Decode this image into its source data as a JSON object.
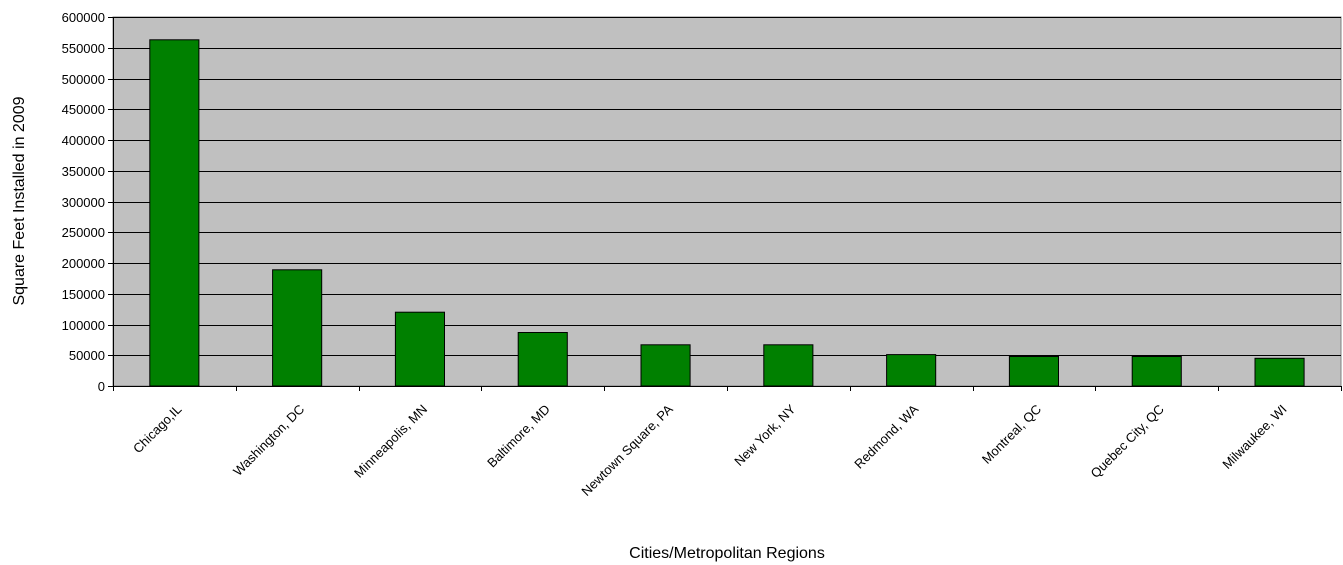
{
  "chart_data": {
    "type": "bar",
    "title": "",
    "xlabel": "Cities/Metropolitan Regions",
    "ylabel": "Square Feet Installed in 2009",
    "ylim": [
      0,
      600000
    ],
    "yticks": [
      0,
      50000,
      100000,
      150000,
      200000,
      250000,
      300000,
      350000,
      400000,
      450000,
      500000,
      550000,
      600000
    ],
    "categories": [
      "Chicago,IL",
      "Washington, DC",
      "Minneapolis, MN",
      "Baltimore, MD",
      "Newtown Square, PA",
      "New York, NY",
      "Redmond, WA",
      "Montreal, QC",
      "Quebec City, QC",
      "Milwaukee, WI"
    ],
    "values": [
      563000,
      189000,
      120000,
      87000,
      67000,
      67000,
      51000,
      48000,
      48000,
      45000
    ],
    "grid": true,
    "legend": "none",
    "colors": {
      "bar": "#008000",
      "plot_background": "#c0c0c0",
      "gridline": "#000000"
    }
  }
}
